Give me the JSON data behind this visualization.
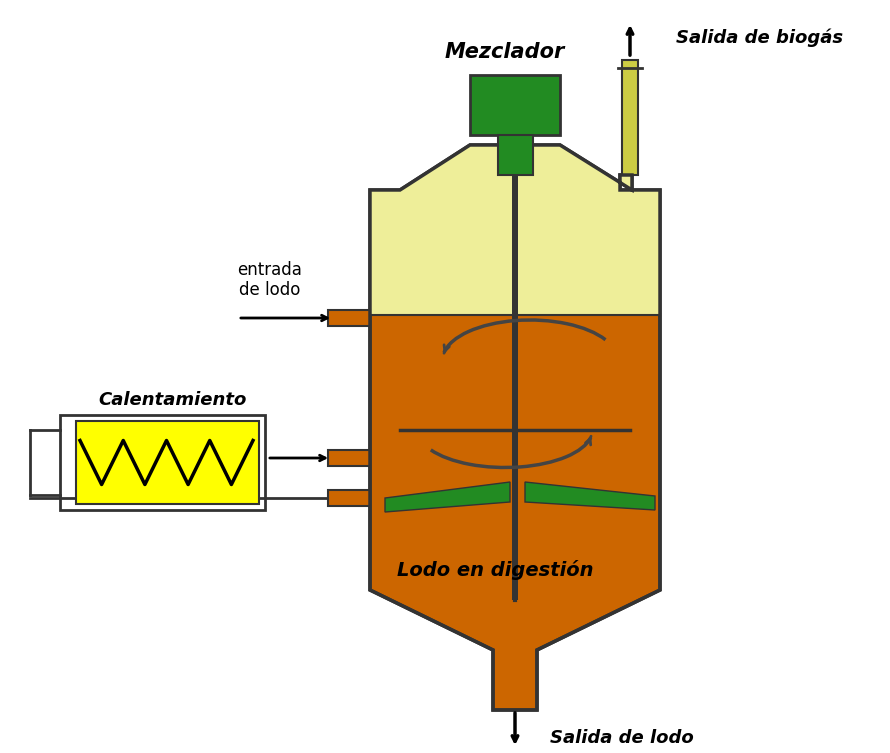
{
  "bg_color": "#ffffff",
  "tank_color": "#CC6600",
  "tank_outline": "#333333",
  "top_gas_color": "#EEEE99",
  "mixer_green": "#228B22",
  "blade_color": "#228B22",
  "shaft_color": "#333333",
  "pipe_color": "#CC6600",
  "heater_yellow": "#FFFF00",
  "heater_outline": "#333333",
  "arrow_color": "#444444",
  "chimney_color": "#CCCC44",
  "text_color": "#000000",
  "label_mezclador": "Mezclador",
  "label_salida_biogas": "Salida de biogás",
  "label_entrada_lodo": "entrada\nde lodo",
  "label_calentamiento": "Calentamiento",
  "label_lodo_digestion": "Lodo en digestión",
  "label_salida_lodo": "Salida de lodo"
}
